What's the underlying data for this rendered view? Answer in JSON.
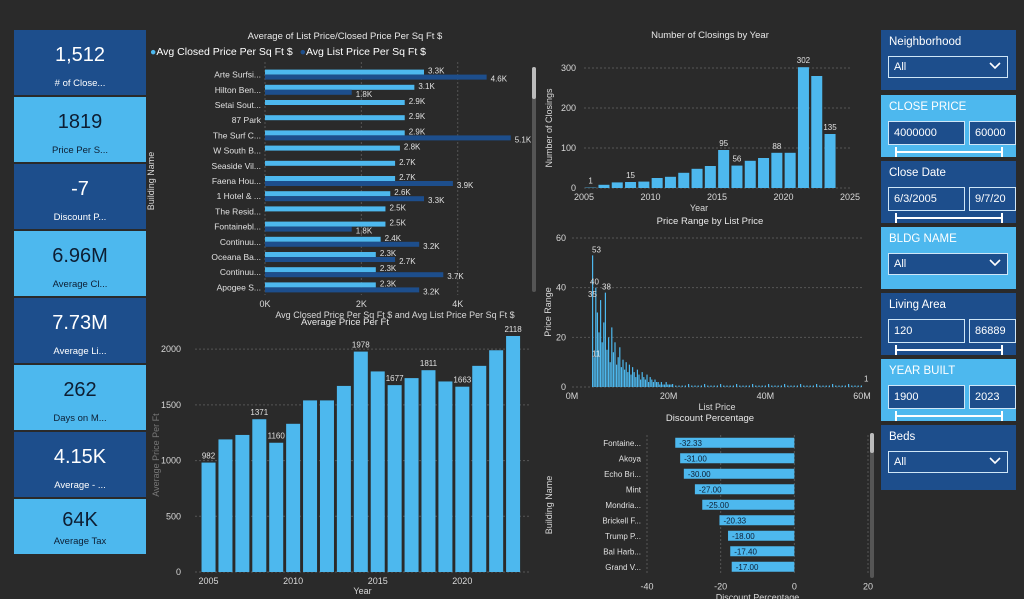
{
  "kpis": [
    {
      "value": "1,512",
      "label": "# of Close..."
    },
    {
      "value": "1819",
      "label": "Price Per S..."
    },
    {
      "value": "-7",
      "label": "Discount P..."
    },
    {
      "value": "6.96M",
      "label": "Average Cl..."
    },
    {
      "value": "7.73M",
      "label": "Average Li..."
    },
    {
      "value": "262",
      "label": "Days on M..."
    },
    {
      "value": "4.15K",
      "label": "Average - ..."
    },
    {
      "value": "64K",
      "label": "Average Tax"
    }
  ],
  "slicers": {
    "neighborhood": {
      "title": "Neighborhood",
      "value": "All"
    },
    "close_price": {
      "title": "CLOSE PRICE",
      "min": "4000000",
      "max": "60000"
    },
    "close_date": {
      "title": "Close Date",
      "min": "6/3/2005",
      "max": "9/7/20"
    },
    "bldg_name": {
      "title": "BLDG NAME",
      "value": "All"
    },
    "living_area": {
      "title": "Living Area",
      "min": "120",
      "max": "86889"
    },
    "year_built": {
      "title": "YEAR BUILT",
      "min": "1900",
      "max": "2023"
    },
    "beds": {
      "title": "Beds",
      "value": "All"
    }
  },
  "colors": {
    "light": "#4db8ee",
    "dark": "#1d4e8c",
    "bg": "#2a2a2a"
  },
  "chart_data": [
    {
      "id": "price-per-sqft",
      "type": "bar",
      "orientation": "horizontal",
      "title": "Average of List Price/Closed Price Per Sq Ft $",
      "ylabel": "Building Name",
      "xlabel": "Avg Closed Price Per Sq Ft $ and Avg List Price Per Sq Ft $",
      "legend_position": "top",
      "xticks": [
        "0K",
        "2K",
        "4K"
      ],
      "xlim": [
        0,
        5500
      ],
      "categories": [
        "Arte Surfsi...",
        "Hilton Ben...",
        "Setai Sout...",
        "87 Park",
        "The Surf C...",
        "W South B...",
        "Seaside Vil...",
        "Faena Hou...",
        "1 Hotel & ...",
        "The Resid...",
        "Fontainebl...",
        "Continuu...",
        "Oceana Ba...",
        "Continuu...",
        "Apogee S..."
      ],
      "series": [
        {
          "name": "Avg Closed Price Per Sq Ft $",
          "values": [
            3300,
            3100,
            2900,
            2900,
            2900,
            2800,
            2700,
            2700,
            2600,
            2500,
            2500,
            2400,
            2300,
            2300,
            2300
          ],
          "labels": [
            "3.3K",
            "3.1K",
            "2.9K",
            "2.9K",
            "2.9K",
            "2.8K",
            "2.7K",
            "2.7K",
            "2.6K",
            "2.5K",
            "2.5K",
            "2.4K",
            "2.3K",
            "2.3K",
            "2.3K"
          ]
        },
        {
          "name": "Avg List Price Per Sq Ft $",
          "values": [
            4600,
            1800,
            null,
            null,
            5100,
            null,
            null,
            3900,
            3300,
            null,
            1800,
            3200,
            2700,
            3700,
            3200
          ],
          "labels": [
            "4.6K",
            "1.8K",
            "",
            "",
            "5.1K",
            "",
            "",
            "3.9K",
            "3.3K",
            "",
            "1.8K",
            "3.2K",
            "2.7K",
            "3.7K",
            "3.2K"
          ]
        }
      ]
    },
    {
      "id": "closings-by-year",
      "type": "bar",
      "title": "Number of Closings by Year",
      "xlabel": "Year",
      "ylabel": "Number of Closings",
      "xlim": [
        2005,
        2025
      ],
      "ylim": [
        0,
        300
      ],
      "xticks": [
        2005,
        2010,
        2015,
        2020,
        2025
      ],
      "yticks": [
        0,
        100,
        200,
        300
      ],
      "x": [
        2005,
        2006,
        2007,
        2008,
        2009,
        2010,
        2011,
        2012,
        2013,
        2014,
        2015,
        2016,
        2017,
        2018,
        2019,
        2020,
        2021,
        2022,
        2023
      ],
      "values": [
        1,
        8,
        14,
        15,
        16,
        25,
        28,
        38,
        48,
        55,
        95,
        56,
        68,
        75,
        88,
        88,
        302,
        280,
        135
      ],
      "labels": {
        "2005": "1",
        "2008": "15",
        "2015": "95",
        "2016": "56",
        "2019": "88",
        "2021": "302",
        "2023": "135"
      }
    },
    {
      "id": "price-range",
      "type": "bar",
      "title": "Price Range by List Price",
      "xlabel": "List Price",
      "ylabel": "Price Range",
      "xlim": [
        0,
        60000000
      ],
      "ylim": [
        0,
        60
      ],
      "xticks": [
        "0M",
        "20M",
        "40M",
        "60M"
      ],
      "yticks": [
        0,
        20,
        40,
        60
      ],
      "annotations": [
        "53",
        "40",
        "35",
        "38",
        "11",
        "1"
      ]
    },
    {
      "id": "avg-price-per-ft",
      "type": "bar",
      "title": "Average Price Per Ft",
      "xlabel": "Year",
      "ylabel": "Average Price Per Ft",
      "ylim": [
        0,
        2000
      ],
      "yticks": [
        0,
        500,
        1000,
        1500,
        2000
      ],
      "xticks": [
        2005,
        2010,
        2015,
        2020
      ],
      "x": [
        2005,
        2006,
        2007,
        2008,
        2009,
        2010,
        2011,
        2012,
        2013,
        2014,
        2015,
        2016,
        2017,
        2018,
        2019,
        2020,
        2021,
        2022,
        2023
      ],
      "values": [
        982,
        1190,
        1230,
        1371,
        1160,
        1330,
        1540,
        1540,
        1670,
        1978,
        1800,
        1677,
        1740,
        1811,
        1710,
        1663,
        1850,
        1990,
        2118
      ],
      "labels": {
        "2005": "982",
        "2008": "1371",
        "2009": "1160",
        "2014": "1978",
        "2016": "1677",
        "2018": "1811",
        "2020": "1663",
        "2023": "2118"
      }
    },
    {
      "id": "discount-pct",
      "type": "bar",
      "orientation": "horizontal",
      "title": "Discount Percentage",
      "xlabel": "Discount Percentage",
      "ylabel": "Building Name",
      "xlim": [
        -40,
        20
      ],
      "xticks": [
        -40,
        -20,
        0,
        20
      ],
      "categories": [
        "Fontaine...",
        "Akoya",
        "Echo Bri...",
        "Mint",
        "Mondria...",
        "Brickell F...",
        "Trump P...",
        "Bal Harb...",
        "Grand V..."
      ],
      "values": [
        -32.33,
        -31.0,
        -30.0,
        -27.0,
        -25.0,
        -20.33,
        -18.0,
        -17.4,
        -17.0
      ],
      "labels": [
        "-32.33",
        "-31.00",
        "-30.00",
        "-27.00",
        "-25.00",
        "-20.33",
        "-18.00",
        "-17.40",
        "-17.00"
      ]
    }
  ]
}
